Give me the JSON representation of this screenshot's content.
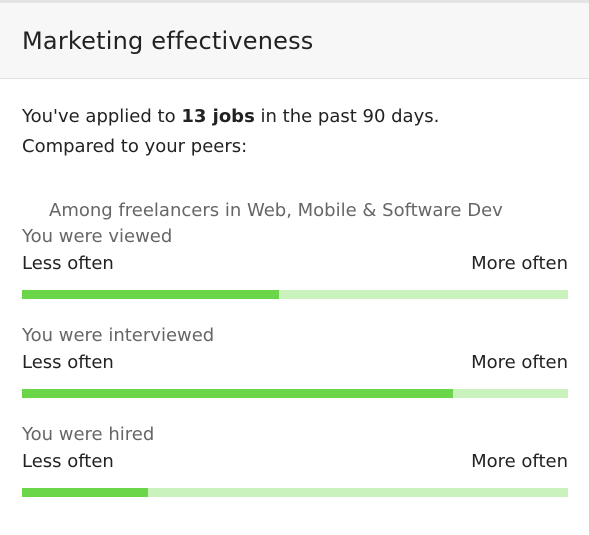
{
  "header": {
    "title": "Marketing effectiveness"
  },
  "summary": {
    "prefix": "You've applied to ",
    "jobs_count": "13 jobs",
    "suffix": " in the past 90 days.",
    "compared": "Compared to your peers:"
  },
  "category_label": "Among freelancers in Web, Mobile & Software Dev",
  "metrics": [
    {
      "title": "You were viewed",
      "low_label": "Less often",
      "high_label": "More often",
      "level": 0.47
    },
    {
      "title": "You were interviewed",
      "low_label": "Less often",
      "high_label": "More often",
      "level": 0.79
    },
    {
      "title": "You were hired",
      "low_label": "Less often",
      "high_label": "More often",
      "level": 0.23
    }
  ],
  "colors": {
    "bar_fill": "#6bd64a",
    "bar_track": "#c9f2bd"
  }
}
